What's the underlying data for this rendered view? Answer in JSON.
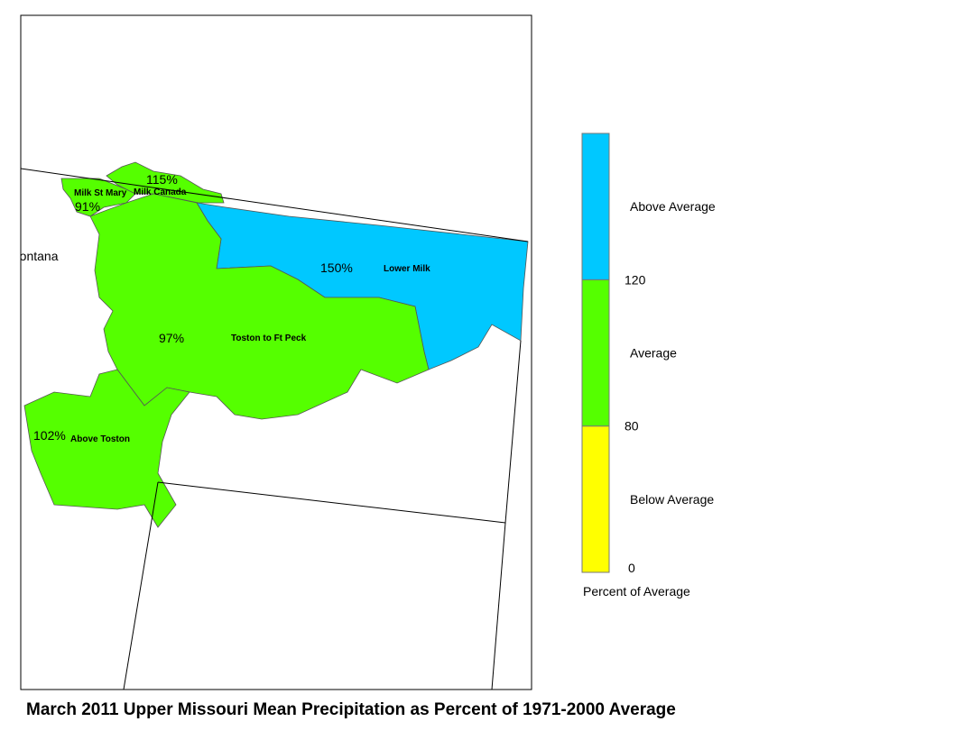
{
  "title": "March 2011 Upper Missouri Mean Precipitation as Percent of 1971-2000 Average",
  "map": {
    "state_label": "Montana",
    "regions": [
      {
        "name": "Milk St Mary",
        "value": 91,
        "value_label": "91%"
      },
      {
        "name": "Milk Canada",
        "value": 115,
        "value_label": "115%"
      },
      {
        "name": "Lower Milk",
        "value": 150,
        "value_label": "150%"
      },
      {
        "name": "Toston to Ft Peck",
        "value": 97,
        "value_label": "97%"
      },
      {
        "name": "Above Toston",
        "value": 102,
        "value_label": "102%"
      }
    ]
  },
  "legend": {
    "title": "Percent of Average",
    "classes": [
      {
        "label": "Below Average",
        "color": "#ffff00"
      },
      {
        "label": "Average",
        "color": "#55ff00"
      },
      {
        "label": "Above Average",
        "color": "#00c8ff"
      }
    ],
    "breaks": [
      0,
      80,
      120
    ]
  }
}
